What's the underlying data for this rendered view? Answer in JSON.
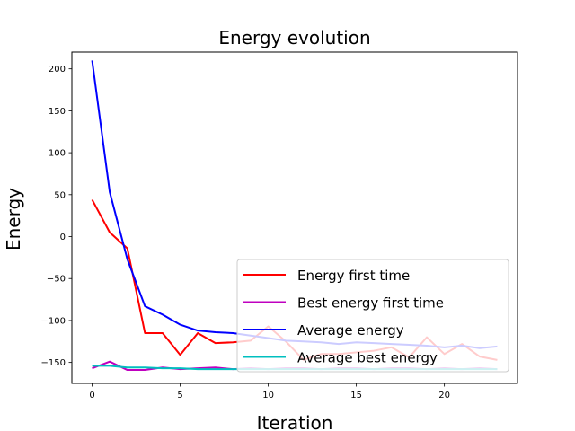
{
  "chart_data": {
    "type": "line",
    "title": "Energy evolution",
    "xlabel": "Iteration",
    "ylabel": "Energy",
    "xlim": [
      -1.15,
      24.15
    ],
    "ylim": [
      -175,
      220
    ],
    "xticks": [
      0,
      5,
      10,
      15,
      20
    ],
    "yticks": [
      -150,
      -100,
      -50,
      0,
      50,
      100,
      150,
      200
    ],
    "grid": false,
    "legend_position": "lower-right",
    "x": [
      0,
      1,
      2,
      3,
      4,
      5,
      6,
      7,
      8,
      9,
      10,
      11,
      12,
      13,
      14,
      15,
      16,
      17,
      18,
      19,
      20,
      21,
      22,
      23
    ],
    "series": [
      {
        "name": "Energy first time",
        "color": "#ff0000",
        "values": [
          44,
          5,
          -14,
          -115,
          -115,
          -141,
          -115,
          -127,
          -126,
          -124,
          -107,
          -125,
          -147,
          -140,
          -140,
          -138,
          -136,
          -132,
          -144,
          -120,
          -140,
          -128,
          -143,
          -147
        ]
      },
      {
        "name": "Best energy first time",
        "color": "#bf00bf",
        "values": [
          -157,
          -149,
          -159,
          -159,
          -156,
          -158,
          -157,
          -156,
          -158,
          -157,
          -158,
          -157,
          -157,
          -158,
          -157,
          -157,
          -158,
          -157,
          -157,
          -158,
          -157,
          -158,
          -157,
          -158
        ]
      },
      {
        "name": "Average energy",
        "color": "#0000ff",
        "values": [
          210,
          53,
          -27,
          -83,
          -93,
          -105,
          -112,
          -114,
          -115,
          -118,
          -121,
          -124,
          -125,
          -126,
          -128,
          -126,
          -127,
          -128,
          -129,
          -130,
          -132,
          -130,
          -133,
          -131
        ]
      },
      {
        "name": "Average best energy",
        "color": "#00bfbf",
        "values": [
          -154,
          -154,
          -156,
          -156,
          -157,
          -157,
          -158,
          -158,
          -158,
          -158,
          -158,
          -158,
          -158,
          -158,
          -158,
          -158,
          -158,
          -158,
          -158,
          -158,
          -158,
          -158,
          -158,
          -158
        ]
      }
    ]
  }
}
